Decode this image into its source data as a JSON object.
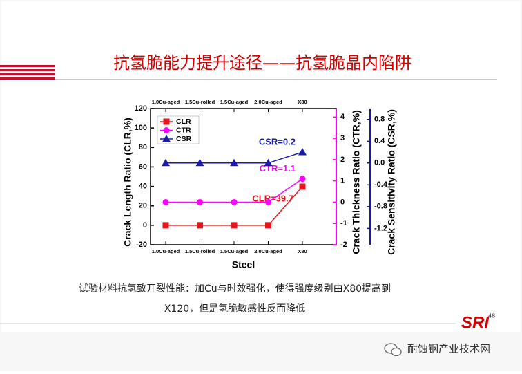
{
  "slide": {
    "title": "抗氢脆能力提升途径——抗氢脆晶内陷阱",
    "caption": [
      "试验材料抗氢致开裂性能：加Cu与时效强化，使得强度级别由X80提高到",
      "X120，但是氢脆敏感性反而降低"
    ],
    "logo": "SRI",
    "page_number": "48",
    "watermark": "耐蚀钢产业技术网"
  },
  "chart_data": {
    "type": "line",
    "x_label": "Steel",
    "y_label": "Crack Length Ratio (CLR,%)",
    "y2_label": "Crack Thickness Ratio (CTR,%)",
    "y3_label": "Crack Sensitivity Ratio (CSR,%)",
    "categories": [
      "1.0Cu-aged",
      "1.5Cu-rolled",
      "1.5Cu-aged",
      "2.0Cu-aged",
      "X80"
    ],
    "ylim": [
      -20,
      120
    ],
    "yticks": [
      -20,
      0,
      20,
      40,
      60,
      80,
      100,
      120
    ],
    "y2lim": [
      -2,
      4.4
    ],
    "y2ticks": [
      -2,
      -1,
      0,
      1,
      2,
      3,
      4
    ],
    "y3lim": [
      -1.5,
      1.0
    ],
    "y3ticks": [
      -1.2,
      -0.8,
      -0.4,
      {
        "value": 0,
        "label": "0.0"
      },
      0.4,
      0.8
    ],
    "legend": "upper left",
    "series": [
      {
        "name": "CLR",
        "color": "#e8141c",
        "marker": "square",
        "values": [
          0,
          0,
          0,
          0,
          39.7
        ],
        "value_labels": [
          null,
          null,
          null,
          null,
          "CLR=39.7"
        ]
      },
      {
        "name": "CTR",
        "color": "#ff00ff",
        "marker": "circle",
        "axis": "y2",
        "values": [
          0,
          0,
          0,
          0,
          1.1
        ],
        "value_labels": [
          null,
          null,
          null,
          null,
          "CTR=1.1"
        ]
      },
      {
        "name": "CSR",
        "color": "#1a1aa8",
        "marker": "triangle",
        "axis": "y3",
        "values": [
          0,
          0,
          0,
          0,
          0.2
        ],
        "value_labels": [
          null,
          null,
          null,
          null,
          "CSR=0.2"
        ]
      }
    ]
  }
}
